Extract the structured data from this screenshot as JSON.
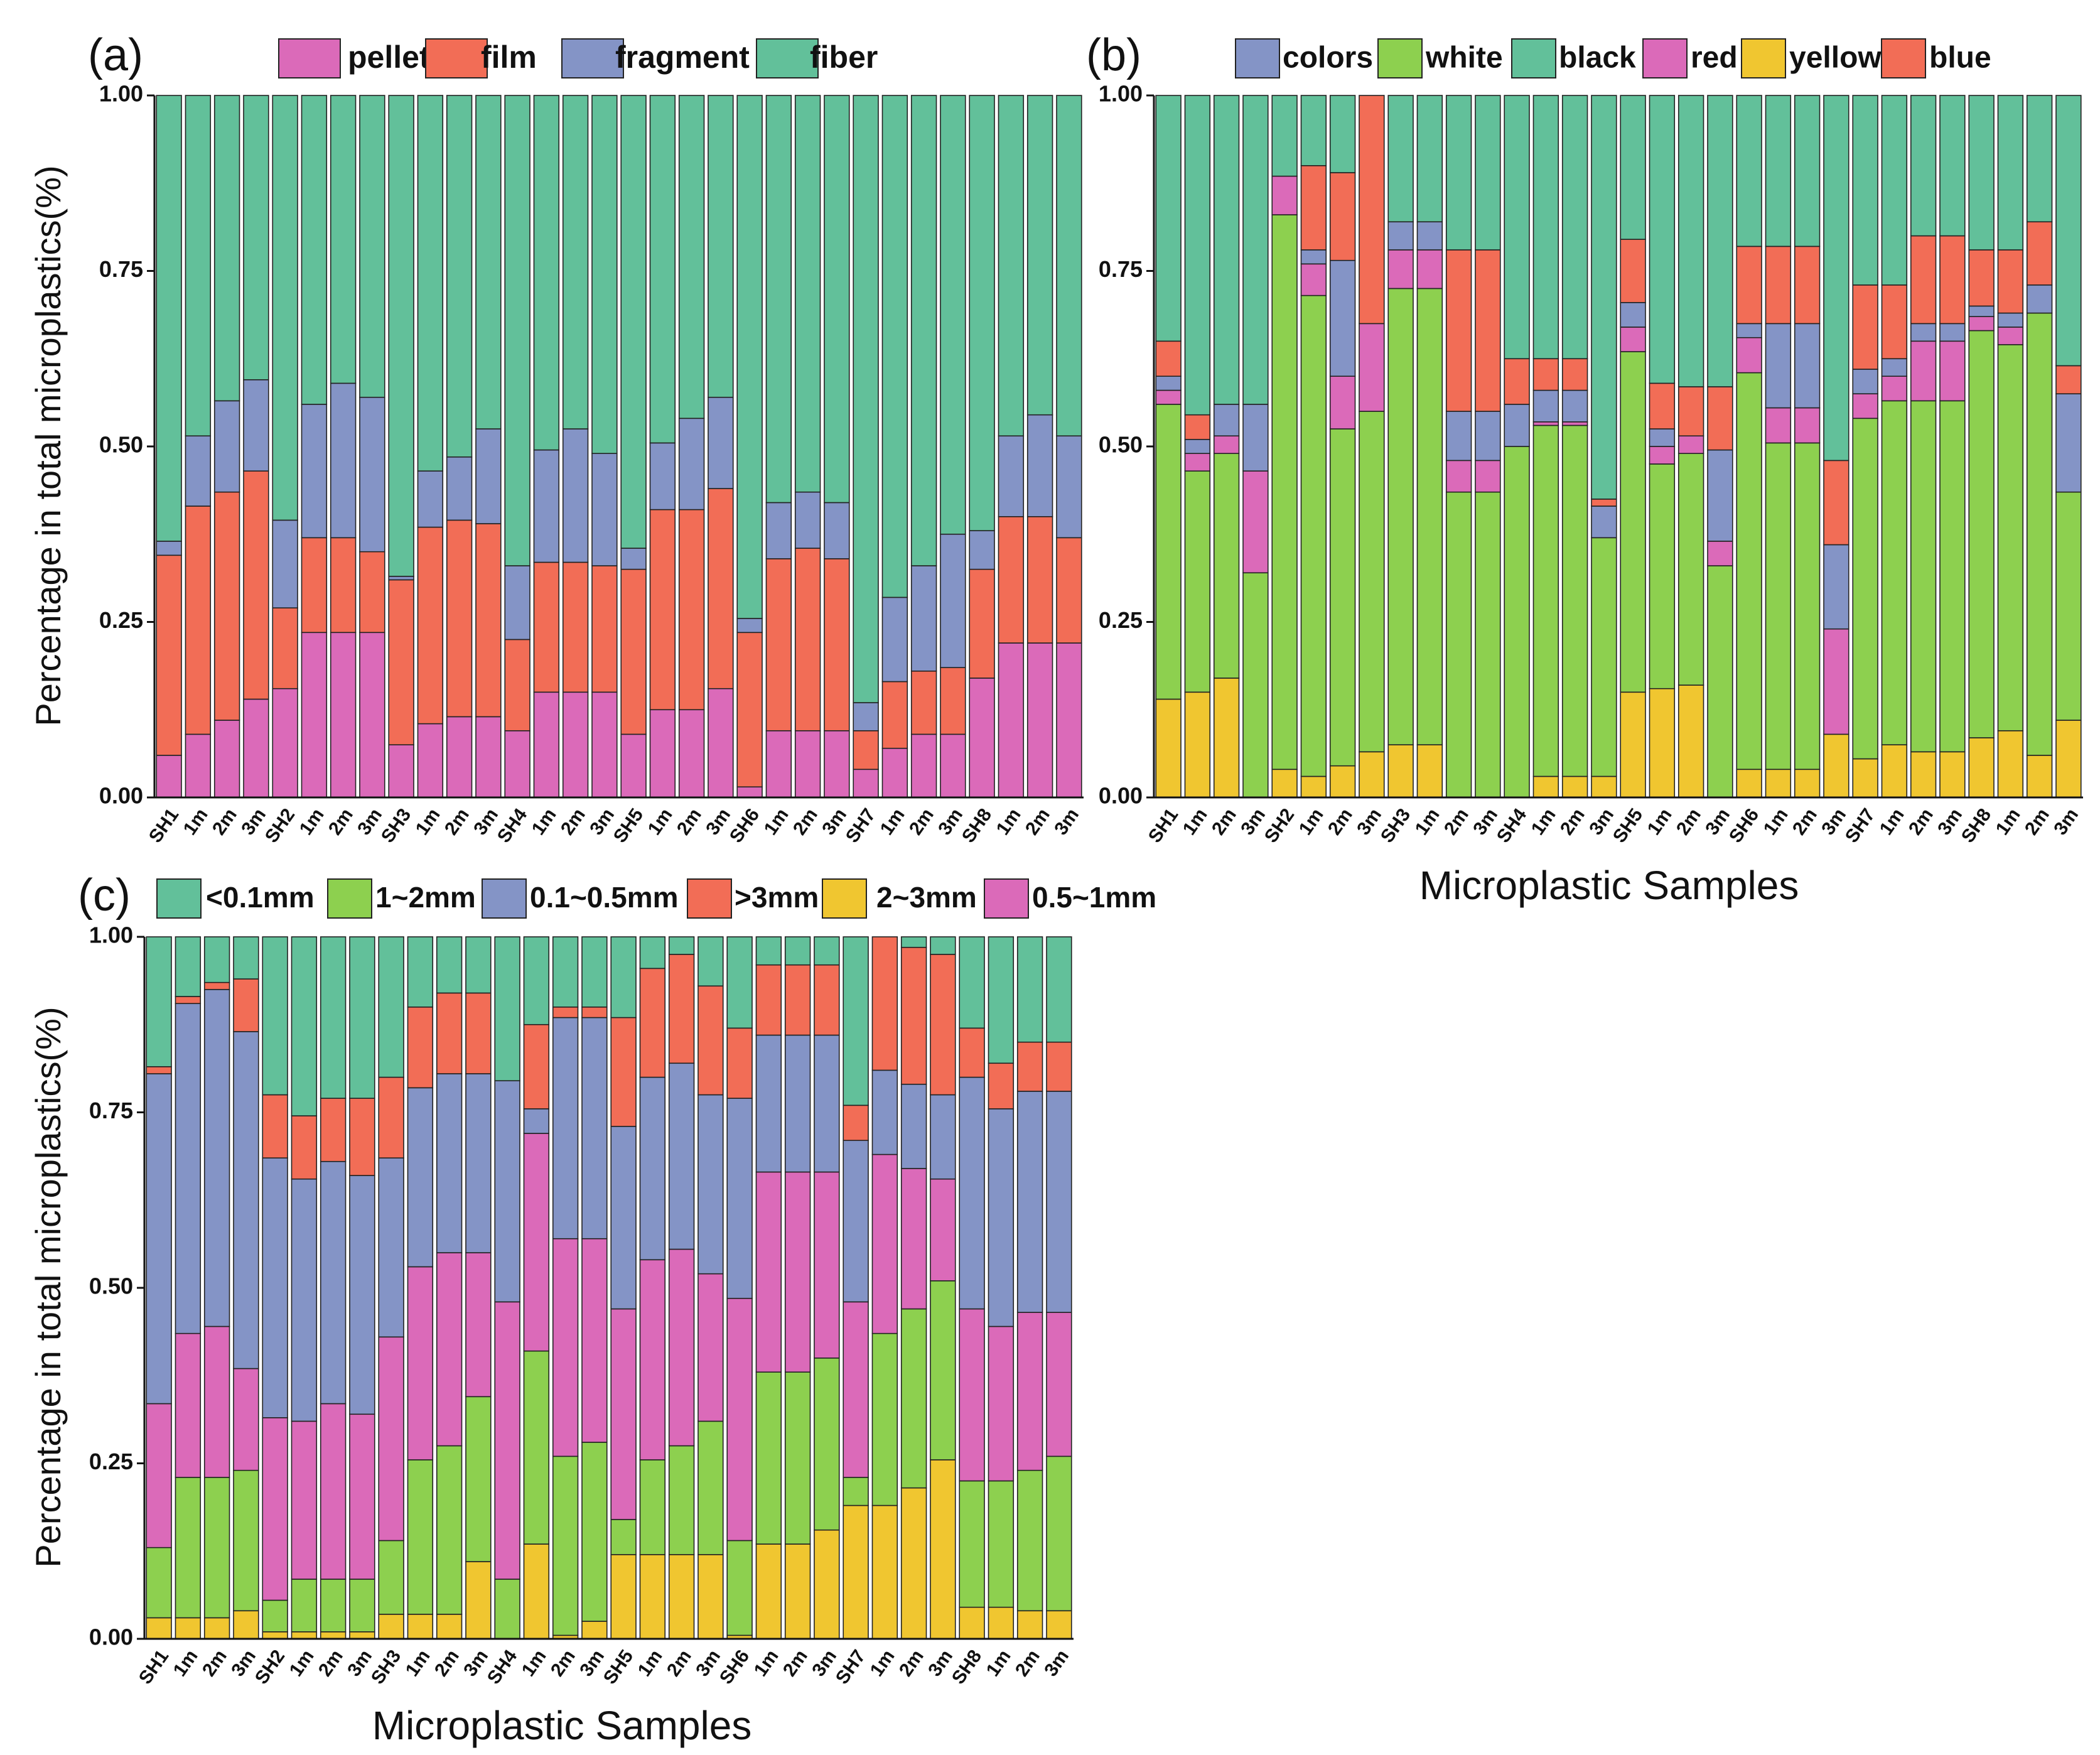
{
  "figure": {
    "x_axis_label": "Microplastic Samples",
    "y_axis_label": "Percentage in total microplastics(%)"
  },
  "chart_data": [
    {
      "type": "bar",
      "stacked": true,
      "panel": "(a)",
      "ylabel": "Percentage in total microplastics(%)",
      "xlabel": "",
      "ylim": [
        0,
        1
      ],
      "yticks": [
        "0.00",
        "0.25",
        "0.50",
        "0.75",
        "1.00"
      ],
      "legend_position": "top",
      "categories": [
        "SH1",
        "1m",
        "2m",
        "3m",
        "SH2",
        "1m",
        "2m",
        "3m",
        "SH3",
        "1m",
        "2m",
        "3m",
        "SH4",
        "1m",
        "2m",
        "3m",
        "SH5",
        "1m",
        "2m",
        "3m",
        "SH6",
        "1m",
        "2m",
        "3m",
        "SH7",
        "1m",
        "2m",
        "3m",
        "SH8",
        "1m",
        "2m",
        "3m"
      ],
      "series": [
        {
          "name": "pellet",
          "color": "#DB6AB9",
          "values": [
            0.06,
            0.09,
            0.11,
            0.14,
            0.155,
            0.235,
            0.235,
            0.235,
            0.075,
            0.105,
            0.115,
            0.115,
            0.095,
            0.15,
            0.15,
            0.15,
            0.09,
            0.125,
            0.125,
            0.155,
            0.015,
            0.095,
            0.095,
            0.095,
            0.04,
            0.07,
            0.09,
            0.09,
            0.17,
            0.22,
            0.22,
            0.22
          ]
        },
        {
          "name": "film",
          "color": "#F26D56",
          "values": [
            0.285,
            0.325,
            0.325,
            0.325,
            0.115,
            0.135,
            0.135,
            0.115,
            0.235,
            0.28,
            0.28,
            0.275,
            0.13,
            0.185,
            0.185,
            0.18,
            0.235,
            0.285,
            0.285,
            0.285,
            0.22,
            0.245,
            0.26,
            0.245,
            0.055,
            0.095,
            0.09,
            0.095,
            0.155,
            0.18,
            0.18,
            0.15
          ]
        },
        {
          "name": "fragment",
          "color": "#8494C6",
          "values": [
            0.02,
            0.1,
            0.13,
            0.13,
            0.125,
            0.19,
            0.22,
            0.22,
            0.005,
            0.08,
            0.09,
            0.135,
            0.105,
            0.16,
            0.19,
            0.16,
            0.03,
            0.095,
            0.13,
            0.13,
            0.02,
            0.08,
            0.08,
            0.08,
            0.04,
            0.12,
            0.15,
            0.19,
            0.055,
            0.115,
            0.145,
            0.145
          ]
        },
        {
          "name": "fiber",
          "color": "#62C09A",
          "values": [
            0.635,
            0.485,
            0.435,
            0.405,
            0.605,
            0.44,
            0.41,
            0.43,
            0.685,
            0.535,
            0.515,
            0.475,
            0.67,
            0.505,
            0.475,
            0.51,
            0.645,
            0.495,
            0.46,
            0.43,
            0.745,
            0.58,
            0.565,
            0.58,
            0.865,
            0.715,
            0.67,
            0.625,
            0.62,
            0.485,
            0.455,
            0.485
          ]
        }
      ]
    },
    {
      "type": "bar",
      "stacked": true,
      "panel": "(b)",
      "ylabel": "",
      "xlabel": "Microplastic Samples",
      "ylim": [
        0,
        1
      ],
      "yticks": [
        "0.00",
        "0.25",
        "0.50",
        "0.75",
        "1.00"
      ],
      "legend_position": "top",
      "categories": [
        "SH1",
        "1m",
        "2m",
        "3m",
        "SH2",
        "1m",
        "2m",
        "3m",
        "SH3",
        "1m",
        "2m",
        "3m",
        "SH4",
        "1m",
        "2m",
        "3m",
        "SH5",
        "1m",
        "2m",
        "3m",
        "SH6",
        "1m",
        "2m",
        "3m",
        "SH7",
        "1m",
        "2m",
        "3m",
        "SH8",
        "1m",
        "2m",
        "3m"
      ],
      "series": [
        {
          "name": "yellow",
          "color": "#F0C630",
          "values": [
            0.14,
            0.15,
            0.17,
            0,
            0.04,
            0.03,
            0.045,
            0.065,
            0.075,
            0.075,
            0,
            0,
            0,
            0.03,
            0.03,
            0.03,
            0.15,
            0.155,
            0.16,
            0,
            0.04,
            0.04,
            0.04,
            0.09,
            0.055,
            0.075,
            0.065,
            0.065,
            0.085,
            0.095,
            0.06,
            0.11
          ]
        },
        {
          "name": "white",
          "color": "#8DD04F",
          "values": [
            0.42,
            0.315,
            0.32,
            0.32,
            0.79,
            0.685,
            0.48,
            0.485,
            0.65,
            0.65,
            0.435,
            0.435,
            0.5,
            0.5,
            0.5,
            0.34,
            0.485,
            0.32,
            0.33,
            0.33,
            0.565,
            0.465,
            0.465,
            0,
            0.485,
            0.49,
            0.5,
            0.5,
            0.58,
            0.55,
            0.63,
            0.325
          ]
        },
        {
          "name": "red",
          "color": "#DB6AB9",
          "values": [
            0.02,
            0.025,
            0.025,
            0.145,
            0.055,
            0.045,
            0.075,
            0.125,
            0.055,
            0.055,
            0.045,
            0.045,
            0,
            0.005,
            0.005,
            0,
            0.035,
            0.025,
            0.025,
            0.035,
            0.05,
            0.05,
            0.05,
            0.15,
            0.035,
            0.035,
            0.085,
            0.085,
            0.02,
            0.025,
            0,
            0
          ]
        },
        {
          "name": "colors",
          "color": "#8494C6",
          "values": [
            0.02,
            0.02,
            0.045,
            0.095,
            0,
            0.02,
            0.165,
            0,
            0.04,
            0.04,
            0.07,
            0.07,
            0.06,
            0.045,
            0.045,
            0.045,
            0.035,
            0.025,
            0,
            0.13,
            0.02,
            0.12,
            0.12,
            0.12,
            0.035,
            0.025,
            0.025,
            0.025,
            0.015,
            0.02,
            0.04,
            0.14
          ]
        },
        {
          "name": "blue",
          "color": "#F26D56",
          "values": [
            0.05,
            0.035,
            0,
            0,
            0,
            0.12,
            0.125,
            0.325,
            0,
            0,
            0.23,
            0.23,
            0.065,
            0.045,
            0.045,
            0.01,
            0.09,
            0.065,
            0.07,
            0.09,
            0.11,
            0.11,
            0.11,
            0.12,
            0.12,
            0.105,
            0.125,
            0.125,
            0.08,
            0.09,
            0.09,
            0.04
          ]
        },
        {
          "name": "black",
          "color": "#62C09A",
          "values": [
            0.35,
            0.455,
            0.44,
            0.44,
            0.115,
            0.1,
            0.11,
            0,
            0.18,
            0.18,
            0.22,
            0.22,
            0.375,
            0.375,
            0.375,
            0.575,
            0.205,
            0.41,
            0.415,
            0.415,
            0.215,
            0.215,
            0.215,
            0.52,
            0.27,
            0.27,
            0.2,
            0.2,
            0.22,
            0.22,
            0.18,
            0.385
          ]
        }
      ]
    },
    {
      "type": "bar",
      "stacked": true,
      "panel": "(c)",
      "ylabel": "Percentage in total microplastics(%)",
      "xlabel": "Microplastic Samples",
      "ylim": [
        0,
        1
      ],
      "yticks": [
        "0.00",
        "0.25",
        "0.50",
        "0.75",
        "1.00"
      ],
      "legend_position": "top",
      "categories": [
        "SH1",
        "1m",
        "2m",
        "3m",
        "SH2",
        "1m",
        "2m",
        "3m",
        "SH3",
        "1m",
        "2m",
        "3m",
        "SH4",
        "1m",
        "2m",
        "3m",
        "SH5",
        "1m",
        "2m",
        "3m",
        "SH6",
        "1m",
        "2m",
        "3m",
        "SH7",
        "1m",
        "2m",
        "3m",
        "SH8",
        "1m",
        "2m",
        "3m"
      ],
      "series": [
        {
          "name": "2~3mm",
          "color": "#F0C630",
          "values": [
            0.03,
            0.03,
            0.03,
            0.04,
            0.01,
            0.01,
            0.01,
            0.01,
            0.035,
            0.035,
            0.035,
            0.11,
            0,
            0.135,
            0.005,
            0.025,
            0.12,
            0.12,
            0.12,
            0.12,
            0.005,
            0.135,
            0.135,
            0.155,
            0.19,
            0.19,
            0.215,
            0.255,
            0.045,
            0.045,
            0.04,
            0.04
          ]
        },
        {
          "name": "1~2mm",
          "color": "#8DD04F",
          "values": [
            0.1,
            0.2,
            0.2,
            0.2,
            0.045,
            0.075,
            0.075,
            0.075,
            0.105,
            0.22,
            0.24,
            0.235,
            0.085,
            0.275,
            0.255,
            0.255,
            0.05,
            0.135,
            0.155,
            0.19,
            0.135,
            0.245,
            0.245,
            0.245,
            0.04,
            0.245,
            0.255,
            0.255,
            0.18,
            0.18,
            0.2,
            0.22
          ]
        },
        {
          "name": "0.5~1mm",
          "color": "#DB6AB9",
          "values": [
            0.205,
            0.205,
            0.215,
            0.145,
            0.26,
            0.225,
            0.25,
            0.235,
            0.29,
            0.275,
            0.275,
            0.205,
            0.395,
            0.31,
            0.31,
            0.29,
            0.3,
            0.285,
            0.28,
            0.21,
            0.345,
            0.285,
            0.285,
            0.265,
            0.25,
            0.255,
            0.2,
            0.145,
            0.245,
            0.22,
            0.225,
            0.205
          ]
        },
        {
          "name": "0.1~0.5mm",
          "color": "#8494C6",
          "values": [
            0.47,
            0.47,
            0.48,
            0.48,
            0.37,
            0.345,
            0.345,
            0.34,
            0.255,
            0.255,
            0.255,
            0.255,
            0.315,
            0.035,
            0.315,
            0.315,
            0.26,
            0.26,
            0.265,
            0.255,
            0.285,
            0.195,
            0.195,
            0.195,
            0.23,
            0.12,
            0.12,
            0.12,
            0.33,
            0.31,
            0.315,
            0.315
          ]
        },
        {
          "name": ">3mm",
          "color": "#F26D56",
          "values": [
            0.01,
            0.01,
            0.01,
            0.075,
            0.09,
            0.09,
            0.09,
            0.11,
            0.115,
            0.115,
            0.115,
            0.115,
            0,
            0.12,
            0.015,
            0.015,
            0.155,
            0.155,
            0.155,
            0.155,
            0.1,
            0.1,
            0.1,
            0.1,
            0.05,
            0.19,
            0.195,
            0.2,
            0.07,
            0.065,
            0.07,
            0.07
          ]
        },
        {
          "name": "<0.1mm",
          "color": "#62C09A",
          "values": [
            0.185,
            0.085,
            0.065,
            0.06,
            0.225,
            0.255,
            0.23,
            0.23,
            0.2,
            0.1,
            0.08,
            0.08,
            0.205,
            0.125,
            0.1,
            0.1,
            0.115,
            0.045,
            0.025,
            0.07,
            0.13,
            0.04,
            0.04,
            0.04,
            0.24,
            0,
            0.015,
            0.025,
            0.13,
            0.18,
            0.15,
            0.15
          ]
        }
      ]
    }
  ]
}
